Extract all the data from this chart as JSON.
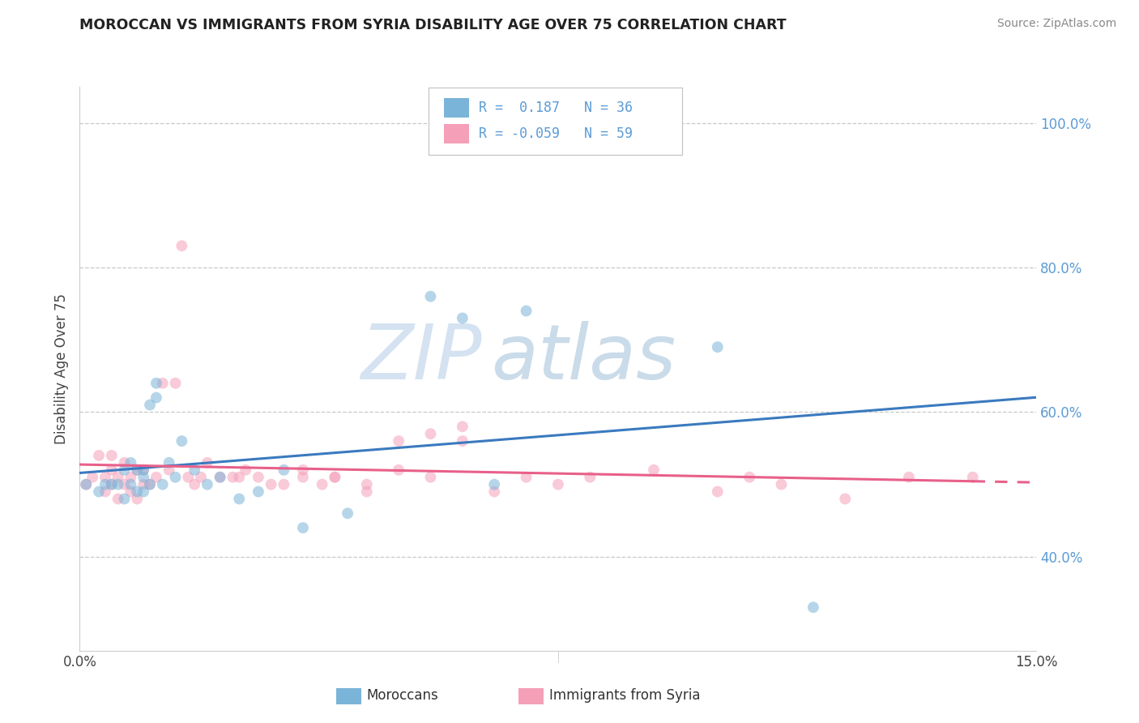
{
  "title": "MOROCCAN VS IMMIGRANTS FROM SYRIA DISABILITY AGE OVER 75 CORRELATION CHART",
  "source": "Source: ZipAtlas.com",
  "ylabel": "Disability Age Over 75",
  "xlim": [
    0.0,
    0.15
  ],
  "ylim": [
    0.27,
    1.05
  ],
  "xtick_labels": [
    "0.0%",
    "15.0%"
  ],
  "ytick_labels": [
    "40.0%",
    "60.0%",
    "80.0%",
    "100.0%"
  ],
  "ytick_values": [
    0.4,
    0.6,
    0.8,
    1.0
  ],
  "xtick_values": [
    0.0,
    0.15
  ],
  "watermark_zip": "ZIP",
  "watermark_atlas": "atlas",
  "legend_r1": "R =  0.187",
  "legend_n1": "N = 36",
  "legend_r2": "R = -0.059",
  "legend_n2": "N = 59",
  "blue_scatter_color": "#7ab4d8",
  "pink_scatter_color": "#f5a0b8",
  "blue_line_color": "#3a7abf",
  "pink_line_color": "#e8608a",
  "background_color": "#ffffff",
  "grid_color": "#c8c8c8",
  "ytick_color": "#5b9bd5",
  "moroccan_x": [
    0.001,
    0.003,
    0.004,
    0.005,
    0.006,
    0.007,
    0.007,
    0.008,
    0.008,
    0.009,
    0.009,
    0.01,
    0.01,
    0.01,
    0.011,
    0.011,
    0.012,
    0.012,
    0.013,
    0.014,
    0.015,
    0.016,
    0.018,
    0.02,
    0.022,
    0.025,
    0.028,
    0.032,
    0.035,
    0.042,
    0.055,
    0.06,
    0.065,
    0.07,
    0.1,
    0.115
  ],
  "moroccan_y": [
    0.5,
    0.49,
    0.5,
    0.5,
    0.5,
    0.48,
    0.52,
    0.5,
    0.53,
    0.49,
    0.52,
    0.49,
    0.51,
    0.52,
    0.5,
    0.61,
    0.62,
    0.64,
    0.5,
    0.53,
    0.51,
    0.56,
    0.52,
    0.5,
    0.51,
    0.48,
    0.49,
    0.52,
    0.44,
    0.46,
    0.76,
    0.73,
    0.5,
    0.74,
    0.69,
    0.33
  ],
  "syria_x": [
    0.001,
    0.002,
    0.003,
    0.004,
    0.004,
    0.005,
    0.005,
    0.005,
    0.006,
    0.006,
    0.007,
    0.007,
    0.008,
    0.008,
    0.009,
    0.009,
    0.01,
    0.01,
    0.011,
    0.012,
    0.013,
    0.014,
    0.015,
    0.016,
    0.017,
    0.018,
    0.019,
    0.02,
    0.022,
    0.024,
    0.026,
    0.028,
    0.032,
    0.035,
    0.038,
    0.04,
    0.045,
    0.05,
    0.055,
    0.06,
    0.065,
    0.07,
    0.075,
    0.08,
    0.09,
    0.1,
    0.105,
    0.11,
    0.12,
    0.13,
    0.14,
    0.025,
    0.03,
    0.035,
    0.04,
    0.045,
    0.05,
    0.055,
    0.06
  ],
  "syria_y": [
    0.5,
    0.51,
    0.54,
    0.49,
    0.51,
    0.5,
    0.52,
    0.54,
    0.48,
    0.51,
    0.5,
    0.53,
    0.49,
    0.51,
    0.48,
    0.52,
    0.5,
    0.52,
    0.5,
    0.51,
    0.64,
    0.52,
    0.64,
    0.83,
    0.51,
    0.5,
    0.51,
    0.53,
    0.51,
    0.51,
    0.52,
    0.51,
    0.5,
    0.51,
    0.5,
    0.51,
    0.49,
    0.52,
    0.51,
    0.56,
    0.49,
    0.51,
    0.5,
    0.51,
    0.52,
    0.49,
    0.51,
    0.5,
    0.48,
    0.51,
    0.51,
    0.51,
    0.5,
    0.52,
    0.51,
    0.5,
    0.56,
    0.57,
    0.58
  ]
}
